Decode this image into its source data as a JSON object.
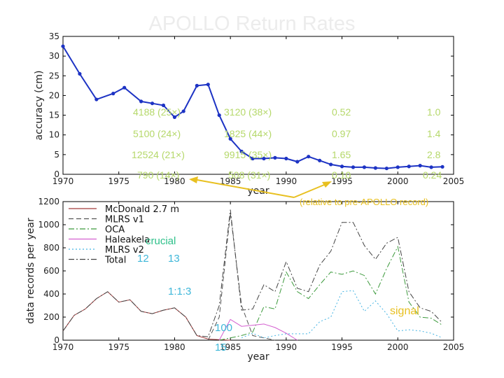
{
  "slide_title": "APOLLO Return Rates",
  "colors": {
    "blue": "#1d33c4",
    "mcdonald": "#a23b3b",
    "mlrs1": "#555555",
    "oca": "#3c9a3c",
    "haleakala": "#d45fd0",
    "mlrs2": "#44b3e3",
    "total": "#444444",
    "green_text": "#b5d86a",
    "cyan_text": "#3fb7d9",
    "yellow_text": "#e8c020",
    "aqua_text": "#2ec08a"
  },
  "overlay_table": {
    "rows": [
      [
        "4188 (25×)",
        "3120 (38×)",
        "0.52",
        "1.0"
      ],
      [
        "5100 (24×)",
        "1825 (44×)",
        "0.97",
        "1.4"
      ],
      [
        "12524 (21×)",
        "9915 (35×)",
        "1.65",
        "2.8"
      ],
      [
        "790 (14×)",
        "508 (31×)",
        "0.10",
        "0.24"
      ]
    ],
    "note": "(relative to pre-APOLLO record)"
  },
  "overlay_labels": {
    "crucial": "crucial",
    "n12": "12",
    "n13": "13",
    "ratio": "1:1:3",
    "n100": "100",
    "n15": "15",
    "signal": "signal"
  },
  "chart_data": [
    {
      "type": "line",
      "xlabel": "year",
      "ylabel": "accuracy (cm)",
      "xlim": [
        1970,
        2005
      ],
      "ylim": [
        0,
        35
      ],
      "xticks": [
        1970,
        1975,
        1980,
        1985,
        1990,
        1995,
        2000,
        2005
      ],
      "yticks": [
        0,
        5,
        10,
        15,
        20,
        25,
        30,
        35
      ],
      "series": [
        {
          "name": "",
          "color": "#1d33c4",
          "markers": true,
          "x": [
            1970,
            1971.5,
            1973,
            1974.5,
            1975.5,
            1977,
            1978,
            1979,
            1980,
            1980.8,
            1982,
            1983,
            1984,
            1985,
            1986,
            1987,
            1988,
            1989,
            1990,
            1991,
            1992,
            1993,
            1994,
            1995,
            1996,
            1997,
            1998,
            1999,
            2000,
            2001,
            2002,
            2003,
            2004
          ],
          "y": [
            32.5,
            25.5,
            19,
            20.5,
            22,
            18.5,
            18,
            17.5,
            14.5,
            16,
            22.5,
            22.8,
            15,
            9,
            5.8,
            4,
            4,
            4.2,
            4,
            3.2,
            4.5,
            3.5,
            2.5,
            2,
            1.8,
            1.8,
            1.6,
            1.5,
            1.8,
            2,
            2.2,
            1.8,
            1.9
          ]
        }
      ]
    },
    {
      "type": "line",
      "xlabel": "year",
      "ylabel": "data records per year",
      "xlim": [
        1970,
        2005
      ],
      "ylim": [
        0,
        1200
      ],
      "xticks": [
        1970,
        1975,
        1980,
        1985,
        1990,
        1995,
        2000,
        2005
      ],
      "yticks": [
        0,
        200,
        400,
        600,
        800,
        1000,
        1200
      ],
      "legend": {
        "position": "top-left",
        "entries": [
          "McDonald 2.7 m",
          "MLRS v1",
          "OCA",
          "Haleakela",
          "MLRS v2",
          "Total"
        ]
      },
      "series": [
        {
          "name": "McDonald 2.7 m",
          "color": "#a23b3b",
          "dash": "solid",
          "x": [
            1970,
            1971,
            1972,
            1973,
            1974,
            1975,
            1976,
            1977,
            1978,
            1979,
            1980,
            1981,
            1982,
            1983,
            1984,
            1985
          ],
          "y": [
            80,
            215,
            270,
            360,
            420,
            330,
            350,
            250,
            230,
            260,
            280,
            200,
            40,
            10,
            5,
            0
          ]
        },
        {
          "name": "MLRS v1",
          "color": "#555555",
          "dash": "dashed",
          "x": [
            1983,
            1984,
            1985,
            1986,
            1987,
            1988,
            1989
          ],
          "y": [
            0,
            200,
            1100,
            300,
            40,
            20,
            0
          ]
        },
        {
          "name": "OCA",
          "color": "#3c9a3c",
          "dash": "dashdot",
          "x": [
            1984,
            1985,
            1986,
            1987,
            1988,
            1989,
            1990,
            1991,
            1992,
            1993,
            1994,
            1995,
            1996,
            1997,
            1998,
            1999,
            2000,
            2001,
            2002,
            2003,
            2004
          ],
          "y": [
            0,
            20,
            40,
            70,
            290,
            270,
            590,
            420,
            360,
            480,
            590,
            570,
            600,
            560,
            400,
            620,
            810,
            330,
            200,
            190,
            130
          ]
        },
        {
          "name": "Haleakela",
          "color": "#d45fd0",
          "dash": "solid",
          "x": [
            1984,
            1985,
            1986,
            1987,
            1988,
            1989,
            1990,
            1991
          ],
          "y": [
            0,
            180,
            120,
            130,
            140,
            110,
            60,
            0
          ]
        },
        {
          "name": "MLRS v2",
          "color": "#44b3e3",
          "dash": "dotted",
          "x": [
            1986,
            1987,
            1988,
            1989,
            1990,
            1991,
            1992,
            1993,
            1994,
            1995,
            1996,
            1997,
            1998,
            1999,
            2000,
            2001,
            2002,
            2003,
            2004
          ],
          "y": [
            20,
            60,
            20,
            40,
            55,
            55,
            55,
            160,
            200,
            420,
            430,
            250,
            340,
            230,
            80,
            90,
            80,
            60,
            20
          ]
        },
        {
          "name": "Total",
          "color": "#444444",
          "dash": "dashdot",
          "x": [
            1970,
            1971,
            1972,
            1973,
            1974,
            1975,
            1976,
            1977,
            1978,
            1979,
            1980,
            1981,
            1982,
            1983,
            1984,
            1985,
            1986,
            1987,
            1988,
            1989,
            1990,
            1991,
            1992,
            1993,
            1994,
            1995,
            1996,
            1997,
            1998,
            1999,
            2000,
            2001,
            2002,
            2003,
            2004
          ],
          "y": [
            80,
            215,
            270,
            360,
            420,
            330,
            350,
            250,
            230,
            260,
            280,
            200,
            40,
            30,
            300,
            1130,
            260,
            270,
            480,
            420,
            680,
            450,
            420,
            650,
            770,
            1020,
            1020,
            820,
            700,
            840,
            890,
            420,
            280,
            250,
            150
          ]
        }
      ]
    }
  ]
}
